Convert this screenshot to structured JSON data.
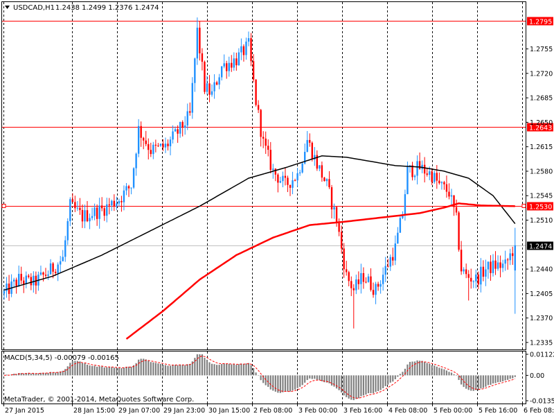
{
  "header": {
    "symbol": "USDCAD,H1",
    "ohlc": "1.2438 1.2499 1.2376 1.2474"
  },
  "indicator": {
    "label": "MACD(5,34,5) -0.00079 -0.00165"
  },
  "copyright": "MetaTrader, © 2001-2014, MetaQuotes Software Corp.",
  "colors": {
    "bull": "#1e90ff",
    "bear": "#ff0000",
    "ma_slow": "#ff0000",
    "ma_fast": "#000000",
    "hline": "#ff0000",
    "grid": "#000000",
    "macd_hist": "#808080",
    "macd_signal": "#ff0000"
  },
  "chart_data": {
    "type": "candlestick",
    "ylim": [
      1.2325,
      1.2822
    ],
    "price_axis_ticks": [
      "1.2755",
      "1.2720",
      "1.2685",
      "1.2650",
      "1.2615",
      "1.2580",
      "1.2545",
      "1.2510",
      "1.2440",
      "1.2405",
      "1.2370",
      "1.2335"
    ],
    "time_axis_labels": [
      "27 Jan 2015",
      "28 Jan 15:00",
      "29 Jan 07:00",
      "29 Jan 23:00",
      "30 Jan 15:00",
      "2 Feb 08:00",
      "3 Feb 00:00",
      "3 Feb 16:00",
      "4 Feb 08:00",
      "5 Feb 00:00",
      "5 Feb 16:00",
      "6 Feb 08:00"
    ],
    "horizontal_lines": [
      {
        "price": 1.2795,
        "label": "1.2795"
      },
      {
        "price": 1.2643,
        "label": "1.2643"
      },
      {
        "price": 1.253,
        "label": "1.2530"
      }
    ],
    "current_price": {
      "price": 1.2474,
      "label": "1.2474"
    },
    "close_anchors": [
      [
        0,
        1.2405
      ],
      [
        6,
        1.2425
      ],
      [
        12,
        1.242
      ],
      [
        18,
        1.2435
      ],
      [
        24,
        1.2455
      ],
      [
        27,
        1.253
      ],
      [
        32,
        1.2515
      ],
      [
        40,
        1.2525
      ],
      [
        47,
        1.254
      ],
      [
        52,
        1.256
      ],
      [
        55,
        1.264
      ],
      [
        60,
        1.261
      ],
      [
        66,
        1.2615
      ],
      [
        72,
        1.264
      ],
      [
        76,
        1.266
      ],
      [
        79,
        1.278
      ],
      [
        82,
        1.27
      ],
      [
        85,
        1.269
      ],
      [
        89,
        1.273
      ],
      [
        95,
        1.274
      ],
      [
        100,
        1.276
      ],
      [
        103,
        1.268
      ],
      [
        106,
        1.262
      ],
      [
        110,
        1.258
      ],
      [
        115,
        1.256
      ],
      [
        120,
        1.2575
      ],
      [
        124,
        1.2625
      ],
      [
        128,
        1.259
      ],
      [
        132,
        1.256
      ],
      [
        136,
        1.251
      ],
      [
        140,
        1.243
      ],
      [
        143,
        1.241
      ],
      [
        147,
        1.243
      ],
      [
        152,
        1.241
      ],
      [
        156,
        1.244
      ],
      [
        160,
        1.247
      ],
      [
        163,
        1.252
      ],
      [
        165,
        1.258
      ],
      [
        170,
        1.2585
      ],
      [
        175,
        1.2575
      ],
      [
        178,
        1.256
      ],
      [
        182,
        1.255
      ],
      [
        185,
        1.251
      ],
      [
        187,
        1.244
      ],
      [
        189,
        1.243
      ],
      [
        193,
        1.2425
      ],
      [
        197,
        1.244
      ],
      [
        201,
        1.2445
      ],
      [
        205,
        1.2445
      ],
      [
        209,
        1.2474
      ]
    ],
    "series": [
      {
        "kind": "black_ma",
        "points": [
          [
            0,
            1.241
          ],
          [
            20,
            1.243
          ],
          [
            40,
            1.246
          ],
          [
            60,
            1.2495
          ],
          [
            80,
            1.253
          ],
          [
            100,
            1.257
          ],
          [
            115,
            1.2585
          ],
          [
            130,
            1.2602
          ],
          [
            140,
            1.26
          ],
          [
            150,
            1.2594
          ],
          [
            160,
            1.2588
          ],
          [
            170,
            1.2586
          ],
          [
            180,
            1.258
          ],
          [
            190,
            1.257
          ],
          [
            200,
            1.2545
          ],
          [
            209,
            1.2505
          ]
        ]
      },
      {
        "kind": "red_ma",
        "points": [
          [
            50,
            1.234
          ],
          [
            65,
            1.238
          ],
          [
            80,
            1.2425
          ],
          [
            95,
            1.246
          ],
          [
            110,
            1.2485
          ],
          [
            125,
            1.2503
          ],
          [
            140,
            1.2508
          ],
          [
            150,
            1.2512
          ],
          [
            160,
            1.2516
          ],
          [
            170,
            1.252
          ],
          [
            180,
            1.2528
          ],
          [
            186,
            1.2534
          ],
          [
            195,
            1.2531
          ],
          [
            209,
            1.253
          ]
        ]
      }
    ],
    "macd_ylim": [
      -0.01352,
      0.01122
    ],
    "macd_ticks": [
      "0.01122",
      "0.00",
      "-0.01352"
    ]
  }
}
